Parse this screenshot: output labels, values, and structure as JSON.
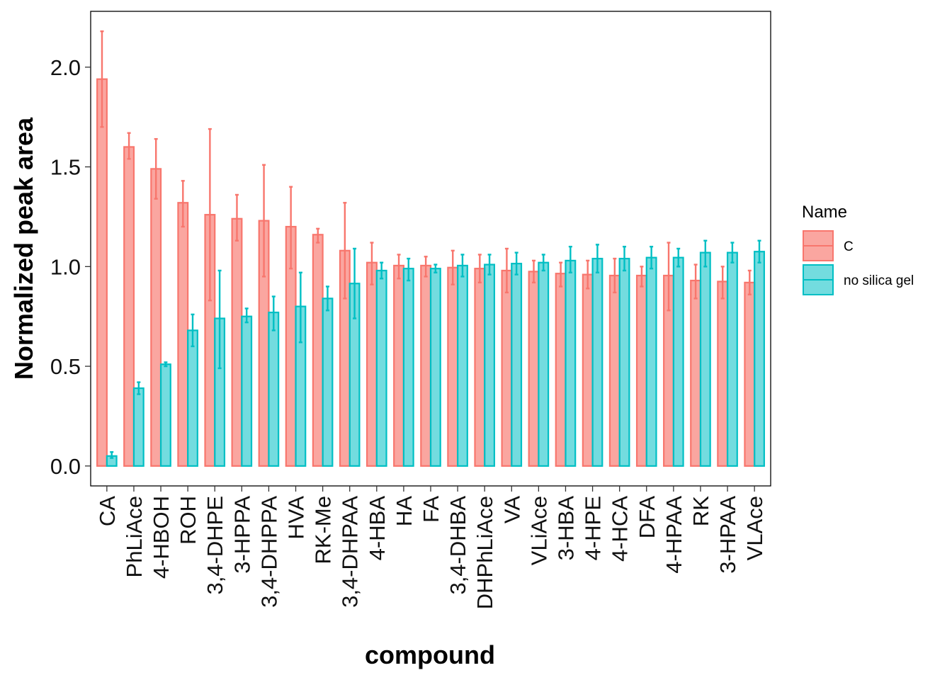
{
  "chart_data": {
    "type": "bar",
    "title": "",
    "xlabel": "compound",
    "ylabel": "Normalized peak area",
    "ylim": [
      -0.1,
      2.28
    ],
    "yticks": [
      "0.0",
      "0.5",
      "1.0",
      "1.5",
      "2.0"
    ],
    "grid": false,
    "legend": {
      "title": "Name",
      "position": "right"
    },
    "categories": [
      "CA",
      "PhLiAce",
      "4-HBOH",
      "ROH",
      "3,4-DHPE",
      "3-HPPA",
      "3,4-DHPPA",
      "HVA",
      "RK-Me",
      "3,4-DHPAA",
      "4-HBA",
      "HA",
      "FA",
      "3,4-DHBA",
      "DHPhLiAce",
      "VA",
      "VLiAce",
      "3-HBA",
      "4-HPE",
      "4-HCA",
      "DFA",
      "4-HPAA",
      "RK",
      "3-HPAA",
      "VLAce"
    ],
    "series": [
      {
        "name": "C",
        "color": "#F8766D",
        "fill": "#F8766D",
        "values": [
          1.94,
          1.6,
          1.49,
          1.32,
          1.26,
          1.24,
          1.23,
          1.2,
          1.16,
          1.08,
          1.02,
          1.005,
          1.005,
          0.995,
          0.99,
          0.98,
          0.975,
          0.965,
          0.96,
          0.955,
          0.955,
          0.955,
          0.93,
          0.925,
          0.92
        ],
        "err_low": [
          1.7,
          1.54,
          1.34,
          1.2,
          0.83,
          1.13,
          0.95,
          0.99,
          1.12,
          0.84,
          0.91,
          0.94,
          0.95,
          0.91,
          0.92,
          0.87,
          0.92,
          0.9,
          0.89,
          0.87,
          0.9,
          0.78,
          0.84,
          0.84,
          0.86
        ],
        "err_high": [
          2.18,
          1.67,
          1.64,
          1.43,
          1.69,
          1.36,
          1.51,
          1.4,
          1.19,
          1.32,
          1.12,
          1.06,
          1.05,
          1.08,
          1.06,
          1.09,
          1.03,
          1.02,
          1.03,
          1.04,
          1.0,
          1.12,
          1.01,
          1.0,
          0.98
        ]
      },
      {
        "name": "no silica gel",
        "color": "#00BFC4",
        "fill": "#00BFC4",
        "values": [
          0.05,
          0.39,
          0.51,
          0.68,
          0.74,
          0.75,
          0.77,
          0.8,
          0.84,
          0.915,
          0.98,
          0.99,
          0.99,
          1.005,
          1.01,
          1.015,
          1.02,
          1.03,
          1.04,
          1.04,
          1.045,
          1.045,
          1.07,
          1.07,
          1.075
        ],
        "err_low": [
          0.04,
          0.36,
          0.5,
          0.6,
          0.49,
          0.72,
          0.68,
          0.62,
          0.78,
          0.74,
          0.94,
          0.93,
          0.97,
          0.95,
          0.96,
          0.96,
          0.98,
          0.97,
          0.97,
          0.98,
          0.99,
          1.0,
          1.0,
          1.02,
          1.02
        ],
        "err_high": [
          0.07,
          0.42,
          0.52,
          0.76,
          0.98,
          0.79,
          0.85,
          0.97,
          0.9,
          1.09,
          1.02,
          1.04,
          1.01,
          1.06,
          1.06,
          1.07,
          1.06,
          1.1,
          1.11,
          1.1,
          1.1,
          1.09,
          1.13,
          1.12,
          1.13
        ]
      }
    ]
  }
}
